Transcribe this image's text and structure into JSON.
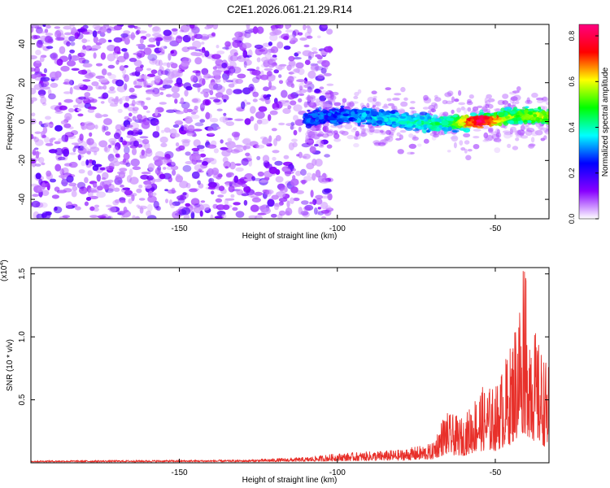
{
  "figure": {
    "title": "C2E1.2026.061.21.29.R14"
  },
  "chart_data": [
    {
      "type": "heatmap",
      "name": "spectrogram",
      "xlabel": "Height of straight line (km)",
      "ylabel": "Frequency (Hz)",
      "xlim": [
        -197,
        -33
      ],
      "ylim": [
        -50,
        50
      ],
      "xticks": [
        -150,
        -100,
        -50
      ],
      "yticks": [
        -40,
        -20,
        0,
        20,
        40
      ],
      "description_of_signal": {
        "noise_region_x": [
          -197,
          -110
        ],
        "signal_band_x": [
          -110,
          -33
        ],
        "signal_center_hz": 1,
        "signal_halfwidth_hz": 5,
        "peak_x": -55,
        "peak_hz": 0
      },
      "colorbar": {
        "label": "Normalized spectral amplitude",
        "range": [
          0.0,
          0.85
        ],
        "ticks": [
          0.0,
          0.2,
          0.4,
          0.6,
          0.8
        ],
        "colormap": [
          "#ffffff",
          "#8800ff",
          "#0000ff",
          "#00ffff",
          "#00ff00",
          "#ffff00",
          "#ff0000",
          "#ff0080"
        ]
      }
    },
    {
      "type": "line",
      "name": "snr",
      "xlabel": "Height of straight line (km)",
      "ylabel": "SNR (10 * v/v)",
      "scale_label": "(x10",
      "scale_exponent": "4",
      "scale_close": ")",
      "xlim": [
        -197,
        -33
      ],
      "ylim": [
        0,
        1.55
      ],
      "xticks": [
        -150,
        -100,
        -50
      ],
      "yticks": [
        0.5,
        1.0,
        1.5
      ],
      "color": "#e8302a",
      "envelope": [
        {
          "x": -197,
          "y": 0.015
        },
        {
          "x": -130,
          "y": 0.02
        },
        {
          "x": -110,
          "y": 0.04
        },
        {
          "x": -100,
          "y": 0.07
        },
        {
          "x": -80,
          "y": 0.1
        },
        {
          "x": -70,
          "y": 0.15
        },
        {
          "x": -66,
          "y": 0.4
        },
        {
          "x": -60,
          "y": 0.35
        },
        {
          "x": -55,
          "y": 0.6
        },
        {
          "x": -50,
          "y": 0.6
        },
        {
          "x": -45,
          "y": 0.95
        },
        {
          "x": -41,
          "y": 1.55
        },
        {
          "x": -37,
          "y": 1.0
        },
        {
          "x": -33,
          "y": 0.75
        }
      ]
    }
  ]
}
